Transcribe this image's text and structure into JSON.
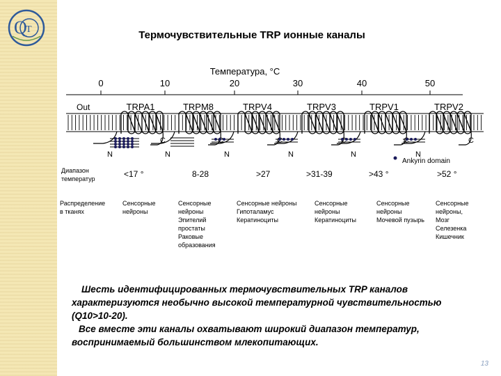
{
  "title": "Термочувствительные TRP ионные каналы",
  "logo": {
    "letter": "Q",
    "inner": "T"
  },
  "temperature_axis": {
    "label": "Температура, °C",
    "ticks": [
      "0",
      "10",
      "20",
      "30",
      "40",
      "50"
    ]
  },
  "out_label": "Out",
  "channels": [
    {
      "name": "TRPA1",
      "range": "<17 °",
      "tissues": [
        "Сенсорные",
        "нейроны"
      ]
    },
    {
      "name": "TRPM8",
      "range": "8-28",
      "tissues": [
        "Сенсорные",
        "нейроны",
        "Эпителий",
        "простаты",
        "Раковые",
        "образования"
      ]
    },
    {
      "name": "TRPV4",
      "range": ">27",
      "tissues": [
        "Сенсорные нейроны",
        "Гипоталамус",
        "Кератиноциты"
      ]
    },
    {
      "name": "TRPV3",
      "range": ">31-39",
      "tissues": [
        "Сенсорные",
        "нейроны",
        "Кератиноциты"
      ]
    },
    {
      "name": "TRPV1",
      "range": ">43 °",
      "tissues": [
        "Сенсорные",
        "нейроны",
        "Мочевой пузырь"
      ]
    },
    {
      "name": "TRPV2",
      "range": ">52 °",
      "tissues": [
        "Сенсорные",
        "нейроны,",
        "Мозг",
        "Селезенка",
        "Кишечник"
      ]
    }
  ],
  "terminal_labels": {
    "c": "C",
    "n": "N"
  },
  "ankyrin_label": "Ankyrin domain",
  "row_labels": {
    "range": [
      "Диапазон",
      "температур"
    ],
    "tissue": [
      "Распределение",
      "в тканях"
    ]
  },
  "paragraph": [
    "Шесть идентифицированных термочувствительных TRP каналов",
    "характеризуются необычно высокой температурной чувствительностью",
    "(Q10>10-20).",
    "Все вместе эти каналы охватывают широкий диапазон температур,",
    "воспринимаемый большинством млекопитающих."
  ],
  "page_number": "13",
  "colors": {
    "sidebar": "#f4e7b4",
    "logo": "#2e5a9a",
    "ankyrin": "#1a1a5a",
    "membrane": "#000000"
  }
}
